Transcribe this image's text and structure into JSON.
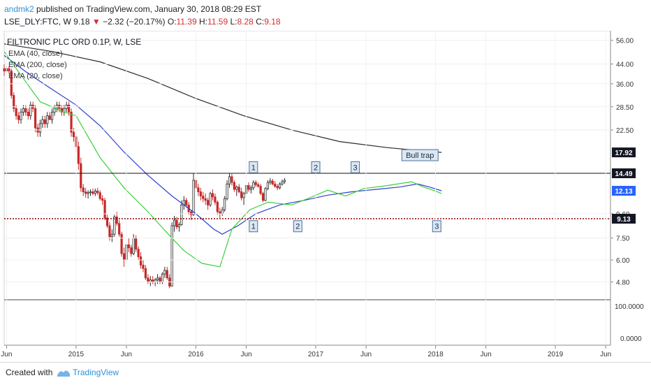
{
  "header": {
    "author": "andmk2",
    "published": "published on TradingView.com, January 30, 2018 08:29 EST",
    "symbol": "LSE_DLY:FTC, W",
    "last": "9.18",
    "change_arrow": "▼",
    "change": "−2.32 (−20.17%)",
    "o_label": "O:",
    "o_value": "11.39",
    "h_label": "H:",
    "h_value": "11.59",
    "l_label": "L:",
    "l_value": "8.28",
    "c_label": "C:",
    "c_value": "9.18"
  },
  "footer": {
    "created_with": "Created with",
    "brand": "TradingView"
  },
  "colors": {
    "up_candle": "#2a2a2a",
    "down_candle": "#c62828",
    "ema20": "#3ccf3c",
    "ema40": "#2f3fcf",
    "ema200": "#2a2a2a",
    "support_line": "#8b0000",
    "marker_fill": "#dbe7f3",
    "marker_border": "#4b6f9b",
    "price_tag": "#131722",
    "ema40_tag": "#2962ff"
  },
  "chart_data": {
    "type": "candlestick",
    "title": "FILTRONIC PLC ORD 0.1P, W, LSE",
    "legend": [
      "EMA (40, close)",
      "EMA (200, close)",
      "EMA (20, close)"
    ],
    "y_scale": "log",
    "y_ticks": [
      "56.00",
      "44.00",
      "36.00",
      "28.50",
      "22.50",
      "9.60",
      "7.50",
      "6.00",
      "4.80"
    ],
    "x_ticks": [
      "Jun",
      "2015",
      "Jun",
      "2016",
      "Jun",
      "2017",
      "Jun",
      "2018",
      "Jun",
      "2019",
      "Jun"
    ],
    "x_tick_dates": [
      2014.42,
      2015.0,
      2015.42,
      2016.0,
      2016.42,
      2017.0,
      2017.42,
      2018.0,
      2018.42,
      2019.0,
      2019.42
    ],
    "x_range": [
      2014.4,
      2019.46
    ],
    "y_range": [
      4.15,
      60.0
    ],
    "horizontal_levels": [
      {
        "value": 14.49,
        "label": "14.49",
        "style": "solid"
      },
      {
        "value": 9.13,
        "label": "9.13",
        "style": "dotted"
      }
    ],
    "price_tags": [
      {
        "value": 17.92,
        "label": "17.92"
      },
      {
        "value": 14.49,
        "label": "14.49"
      },
      {
        "value": 12.13,
        "label": "12.13"
      },
      {
        "value": 9.13,
        "label": "9.13"
      }
    ],
    "annotations": [
      {
        "text": "1",
        "date": 2016.48,
        "price": 15.3
      },
      {
        "text": "2",
        "date": 2017.0,
        "price": 15.3
      },
      {
        "text": "3",
        "date": 2017.33,
        "price": 15.3
      },
      {
        "text": "Bull trap",
        "date": 2017.87,
        "price": 17.3
      },
      {
        "text": "1",
        "date": 2016.48,
        "price": 8.4
      },
      {
        "text": "2",
        "date": 2016.85,
        "price": 8.4
      },
      {
        "text": "3",
        "date": 2018.01,
        "price": 8.4
      }
    ],
    "ema200": {
      "name": "EMA (200, close)",
      "dates": [
        2014.4,
        2014.8,
        2015.2,
        2015.6,
        2016.0,
        2016.4,
        2016.8,
        2017.2,
        2017.6,
        2018.0,
        2018.05
      ],
      "values": [
        54,
        50,
        45,
        38,
        31,
        26,
        22.5,
        20.0,
        18.8,
        18.0,
        17.92
      ]
    },
    "ema40": {
      "name": "EMA (40, close)",
      "dates": [
        2014.4,
        2014.6,
        2014.8,
        2015.0,
        2015.2,
        2015.4,
        2015.6,
        2015.8,
        2016.0,
        2016.15,
        2016.22,
        2016.35,
        2016.5,
        2016.7,
        2016.9,
        2017.1,
        2017.3,
        2017.5,
        2017.7,
        2017.85,
        2017.95,
        2018.05
      ],
      "values": [
        48,
        40,
        34,
        29,
        23.5,
        18,
        14.2,
        11.5,
        9.6,
        8.2,
        7.8,
        8.5,
        9.6,
        10.5,
        11.0,
        11.6,
        12.0,
        12.3,
        12.6,
        13.0,
        12.6,
        12.13
      ]
    },
    "ema20": {
      "name": "EMA (20, close)",
      "dates": [
        2014.4,
        2014.5,
        2014.7,
        2014.9,
        2015.0,
        2015.2,
        2015.4,
        2015.6,
        2015.75,
        2015.9,
        2016.05,
        2016.2,
        2016.3,
        2016.45,
        2016.6,
        2016.8,
        2016.95,
        2017.1,
        2017.25,
        2017.4,
        2017.6,
        2017.8,
        2017.9,
        2018.0,
        2018.05
      ],
      "values": [
        50,
        42,
        30,
        27,
        26,
        17,
        12.5,
        9.8,
        8.0,
        6.6,
        5.8,
        5.6,
        8.2,
        10.0,
        10.8,
        10.5,
        11.3,
        12.2,
        11.5,
        12.4,
        12.8,
        13.3,
        12.6,
        12.1,
        11.8
      ]
    },
    "candles": [
      [
        2014.4,
        42,
        44,
        39,
        41
      ],
      [
        2014.42,
        41,
        43,
        40,
        42
      ],
      [
        2014.44,
        42,
        43,
        40,
        41
      ],
      [
        2014.46,
        41,
        42,
        31,
        32
      ],
      [
        2014.48,
        32,
        33,
        27,
        28
      ],
      [
        2014.5,
        28,
        29,
        25,
        26
      ],
      [
        2014.52,
        26,
        27,
        24,
        25
      ],
      [
        2014.54,
        25,
        28,
        24,
        27
      ],
      [
        2014.56,
        27,
        29,
        26,
        28
      ],
      [
        2014.58,
        28,
        29,
        26,
        27
      ],
      [
        2014.6,
        27,
        28,
        25,
        26
      ],
      [
        2014.62,
        26,
        30,
        25,
        29
      ],
      [
        2014.64,
        29,
        30,
        27,
        28
      ],
      [
        2014.66,
        28,
        29,
        22,
        23
      ],
      [
        2014.68,
        23,
        24,
        21,
        22
      ],
      [
        2014.7,
        22,
        25,
        21,
        24
      ],
      [
        2014.72,
        24,
        26,
        23,
        25
      ],
      [
        2014.74,
        25,
        26,
        23,
        24
      ],
      [
        2014.76,
        24,
        27,
        23,
        26
      ],
      [
        2014.78,
        26,
        27,
        25,
        25
      ],
      [
        2014.8,
        25,
        28,
        24,
        27
      ],
      [
        2014.82,
        27,
        29,
        26,
        28
      ],
      [
        2014.84,
        28,
        30,
        27,
        29
      ],
      [
        2014.86,
        29,
        30,
        27,
        28
      ],
      [
        2014.88,
        28,
        29,
        26,
        27
      ],
      [
        2014.9,
        27,
        29,
        26,
        28
      ],
      [
        2014.92,
        28,
        30,
        27,
        29
      ],
      [
        2014.94,
        29,
        30,
        26,
        27
      ],
      [
        2014.96,
        27,
        28,
        21,
        22
      ],
      [
        2014.98,
        22,
        23,
        20,
        21
      ],
      [
        2015.0,
        21,
        22,
        18,
        19
      ],
      [
        2015.02,
        19,
        20,
        15,
        16
      ],
      [
        2015.04,
        16,
        17,
        12,
        12.5
      ],
      [
        2015.06,
        12.5,
        13,
        11.5,
        12
      ],
      [
        2015.08,
        12,
        12.5,
        11.3,
        11.8
      ],
      [
        2015.1,
        11.8,
        12.2,
        11.2,
        11.9
      ],
      [
        2015.12,
        11.9,
        12.3,
        11.5,
        12.0
      ],
      [
        2015.14,
        12.0,
        12.4,
        11.6,
        11.8
      ],
      [
        2015.16,
        11.8,
        12.4,
        11.5,
        12.1
      ],
      [
        2015.18,
        12.1,
        12.5,
        11.6,
        11.9
      ],
      [
        2015.2,
        11.9,
        12.2,
        11.0,
        11.2
      ],
      [
        2015.22,
        11.2,
        11.6,
        10.5,
        11.0
      ],
      [
        2015.24,
        11.0,
        11.3,
        9.0,
        9.2
      ],
      [
        2015.26,
        9.2,
        9.5,
        8.3,
        8.5
      ],
      [
        2015.28,
        8.5,
        8.8,
        7.3,
        7.6
      ],
      [
        2015.3,
        7.6,
        8.2,
        7.2,
        7.8
      ],
      [
        2015.32,
        7.8,
        9.5,
        7.6,
        9.3
      ],
      [
        2015.34,
        9.3,
        9.8,
        8.5,
        8.7
      ],
      [
        2015.36,
        8.7,
        9.0,
        7.6,
        7.8
      ],
      [
        2015.38,
        7.8,
        8.0,
        6.2,
        6.4
      ],
      [
        2015.4,
        6.4,
        6.8,
        5.6,
        6.0
      ],
      [
        2015.42,
        6.0,
        7.2,
        5.8,
        7.0
      ],
      [
        2015.44,
        7.0,
        7.5,
        6.5,
        6.8
      ],
      [
        2015.46,
        6.8,
        7.0,
        6.2,
        6.4
      ],
      [
        2015.48,
        6.4,
        7.8,
        6.3,
        7.5
      ],
      [
        2015.5,
        7.5,
        7.7,
        6.5,
        6.7
      ],
      [
        2015.52,
        6.7,
        6.9,
        6.0,
        6.2
      ],
      [
        2015.54,
        6.2,
        6.5,
        5.5,
        5.7
      ],
      [
        2015.56,
        5.7,
        6.0,
        5.3,
        5.5
      ],
      [
        2015.58,
        5.5,
        5.7,
        4.9,
        5.0
      ],
      [
        2015.6,
        5.0,
        5.2,
        4.7,
        4.8
      ],
      [
        2015.62,
        4.8,
        5.1,
        4.6,
        4.9
      ],
      [
        2015.64,
        4.9,
        5.1,
        4.7,
        4.8
      ],
      [
        2015.66,
        4.8,
        5.0,
        4.6,
        4.9
      ],
      [
        2015.68,
        4.9,
        5.2,
        4.7,
        5.0
      ],
      [
        2015.7,
        5.0,
        5.1,
        4.7,
        4.8
      ],
      [
        2015.72,
        4.8,
        5.3,
        4.7,
        5.2
      ],
      [
        2015.74,
        5.2,
        5.6,
        5.0,
        5.4
      ],
      [
        2015.76,
        5.4,
        5.6,
        4.9,
        5.0
      ],
      [
        2015.78,
        5.0,
        5.2,
        4.5,
        4.6
      ],
      [
        2015.8,
        4.6,
        8.8,
        4.6,
        8.5
      ],
      [
        2015.82,
        8.5,
        9.4,
        8.0,
        9.0
      ],
      [
        2015.84,
        9.0,
        9.3,
        8.2,
        8.4
      ],
      [
        2015.86,
        8.4,
        8.8,
        8.0,
        8.6
      ],
      [
        2015.88,
        8.6,
        11.0,
        8.5,
        10.5
      ],
      [
        2015.9,
        10.5,
        11.5,
        10.0,
        11.0
      ],
      [
        2015.92,
        11.0,
        11.3,
        10.2,
        10.5
      ],
      [
        2015.94,
        10.5,
        10.8,
        9.5,
        9.8
      ],
      [
        2015.96,
        9.8,
        10.0,
        9.0,
        9.5
      ],
      [
        2015.98,
        9.5,
        14.5,
        9.4,
        13.5
      ],
      [
        2016.0,
        13.5,
        14.0,
        12.0,
        12.5
      ],
      [
        2016.02,
        12.5,
        13.0,
        11.5,
        12.0
      ],
      [
        2016.04,
        12.0,
        12.5,
        11.0,
        11.5
      ],
      [
        2016.06,
        11.5,
        12.0,
        10.8,
        11.2
      ],
      [
        2016.08,
        11.2,
        11.8,
        10.5,
        11.0
      ],
      [
        2016.1,
        11.0,
        11.3,
        10.0,
        10.5
      ],
      [
        2016.12,
        10.5,
        12.0,
        10.3,
        11.8
      ],
      [
        2016.14,
        11.8,
        12.3,
        11.0,
        11.4
      ],
      [
        2016.16,
        11.4,
        11.8,
        10.5,
        10.8
      ],
      [
        2016.18,
        10.8,
        11.0,
        9.5,
        9.8
      ],
      [
        2016.2,
        9.8,
        10.2,
        9.2,
        9.6
      ],
      [
        2016.22,
        9.6,
        10.3,
        9.4,
        10.0
      ],
      [
        2016.24,
        10.0,
        11.5,
        9.8,
        11.2
      ],
      [
        2016.26,
        11.2,
        13.5,
        11.0,
        13.0
      ],
      [
        2016.28,
        13.0,
        14.5,
        12.5,
        14.0
      ],
      [
        2016.3,
        14.0,
        14.4,
        12.8,
        13.2
      ],
      [
        2016.32,
        13.2,
        13.5,
        12.0,
        12.3
      ],
      [
        2016.34,
        12.3,
        12.8,
        11.5,
        12.6
      ],
      [
        2016.36,
        12.6,
        13.0,
        11.8,
        12.0
      ],
      [
        2016.38,
        12.0,
        12.5,
        11.0,
        11.3
      ],
      [
        2016.4,
        11.3,
        12.0,
        10.5,
        11.8
      ],
      [
        2016.42,
        11.8,
        13.0,
        11.5,
        12.8
      ],
      [
        2016.44,
        12.8,
        13.2,
        12.0,
        12.3
      ],
      [
        2016.46,
        12.3,
        12.8,
        11.8,
        12.5
      ],
      [
        2016.48,
        12.5,
        13.5,
        12.2,
        13.2
      ],
      [
        2016.5,
        13.2,
        13.5,
        12.6,
        12.9
      ],
      [
        2016.52,
        12.9,
        13.2,
        12.5,
        12.7
      ],
      [
        2016.54,
        12.7,
        13.0,
        11.6,
        11.8
      ],
      [
        2016.56,
        11.8,
        12.0,
        10.8,
        11.0
      ],
      [
        2016.58,
        11.0,
        12.6,
        10.9,
        12.4
      ],
      [
        2016.6,
        12.4,
        13.5,
        12.2,
        13.2
      ],
      [
        2016.62,
        13.2,
        13.8,
        12.9,
        13.4
      ],
      [
        2016.64,
        13.4,
        13.7,
        12.8,
        13.0
      ],
      [
        2016.66,
        13.0,
        13.4,
        12.5,
        12.7
      ],
      [
        2016.68,
        12.7,
        13.0,
        12.2,
        12.5
      ],
      [
        2016.7,
        12.5,
        13.2,
        12.3,
        13.0
      ],
      [
        2016.72,
        13.0,
        13.6,
        12.8,
        13.3
      ],
      [
        2016.74,
        13.3,
        13.8,
        13.0,
        13.5
      ]
    ]
  }
}
